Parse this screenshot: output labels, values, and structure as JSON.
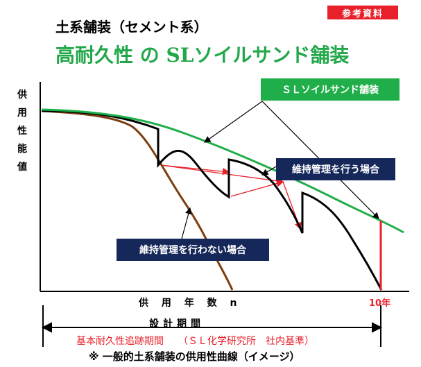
{
  "badge": "参考資料",
  "subtitle": "土系舗装（セメント系）",
  "title": "高耐久性 の SLソイルサンド舗装",
  "y_axis_label": "供用性能値",
  "x_axis_label": "供 用 年 数 n",
  "x_end_label": "10年",
  "period_label": "設計期間",
  "legend_sl": "ＳＬソイルサンド舗装",
  "legend_maintained": "維持管理を行う場合",
  "legend_unmaintained": "維持管理を行わない場合",
  "tracking_note": "基本耐久性追跡期間　　（ＳＬ化学研究所　社内基準）",
  "footnote": "※ 一般的土系舗装の供用性曲線（イメージ）",
  "colors": {
    "sl_line": "#1fae49",
    "unmaintained": "#7a3e10",
    "maintained": "#000000",
    "highlight": "#e8202a",
    "navy": "#16285a"
  }
}
